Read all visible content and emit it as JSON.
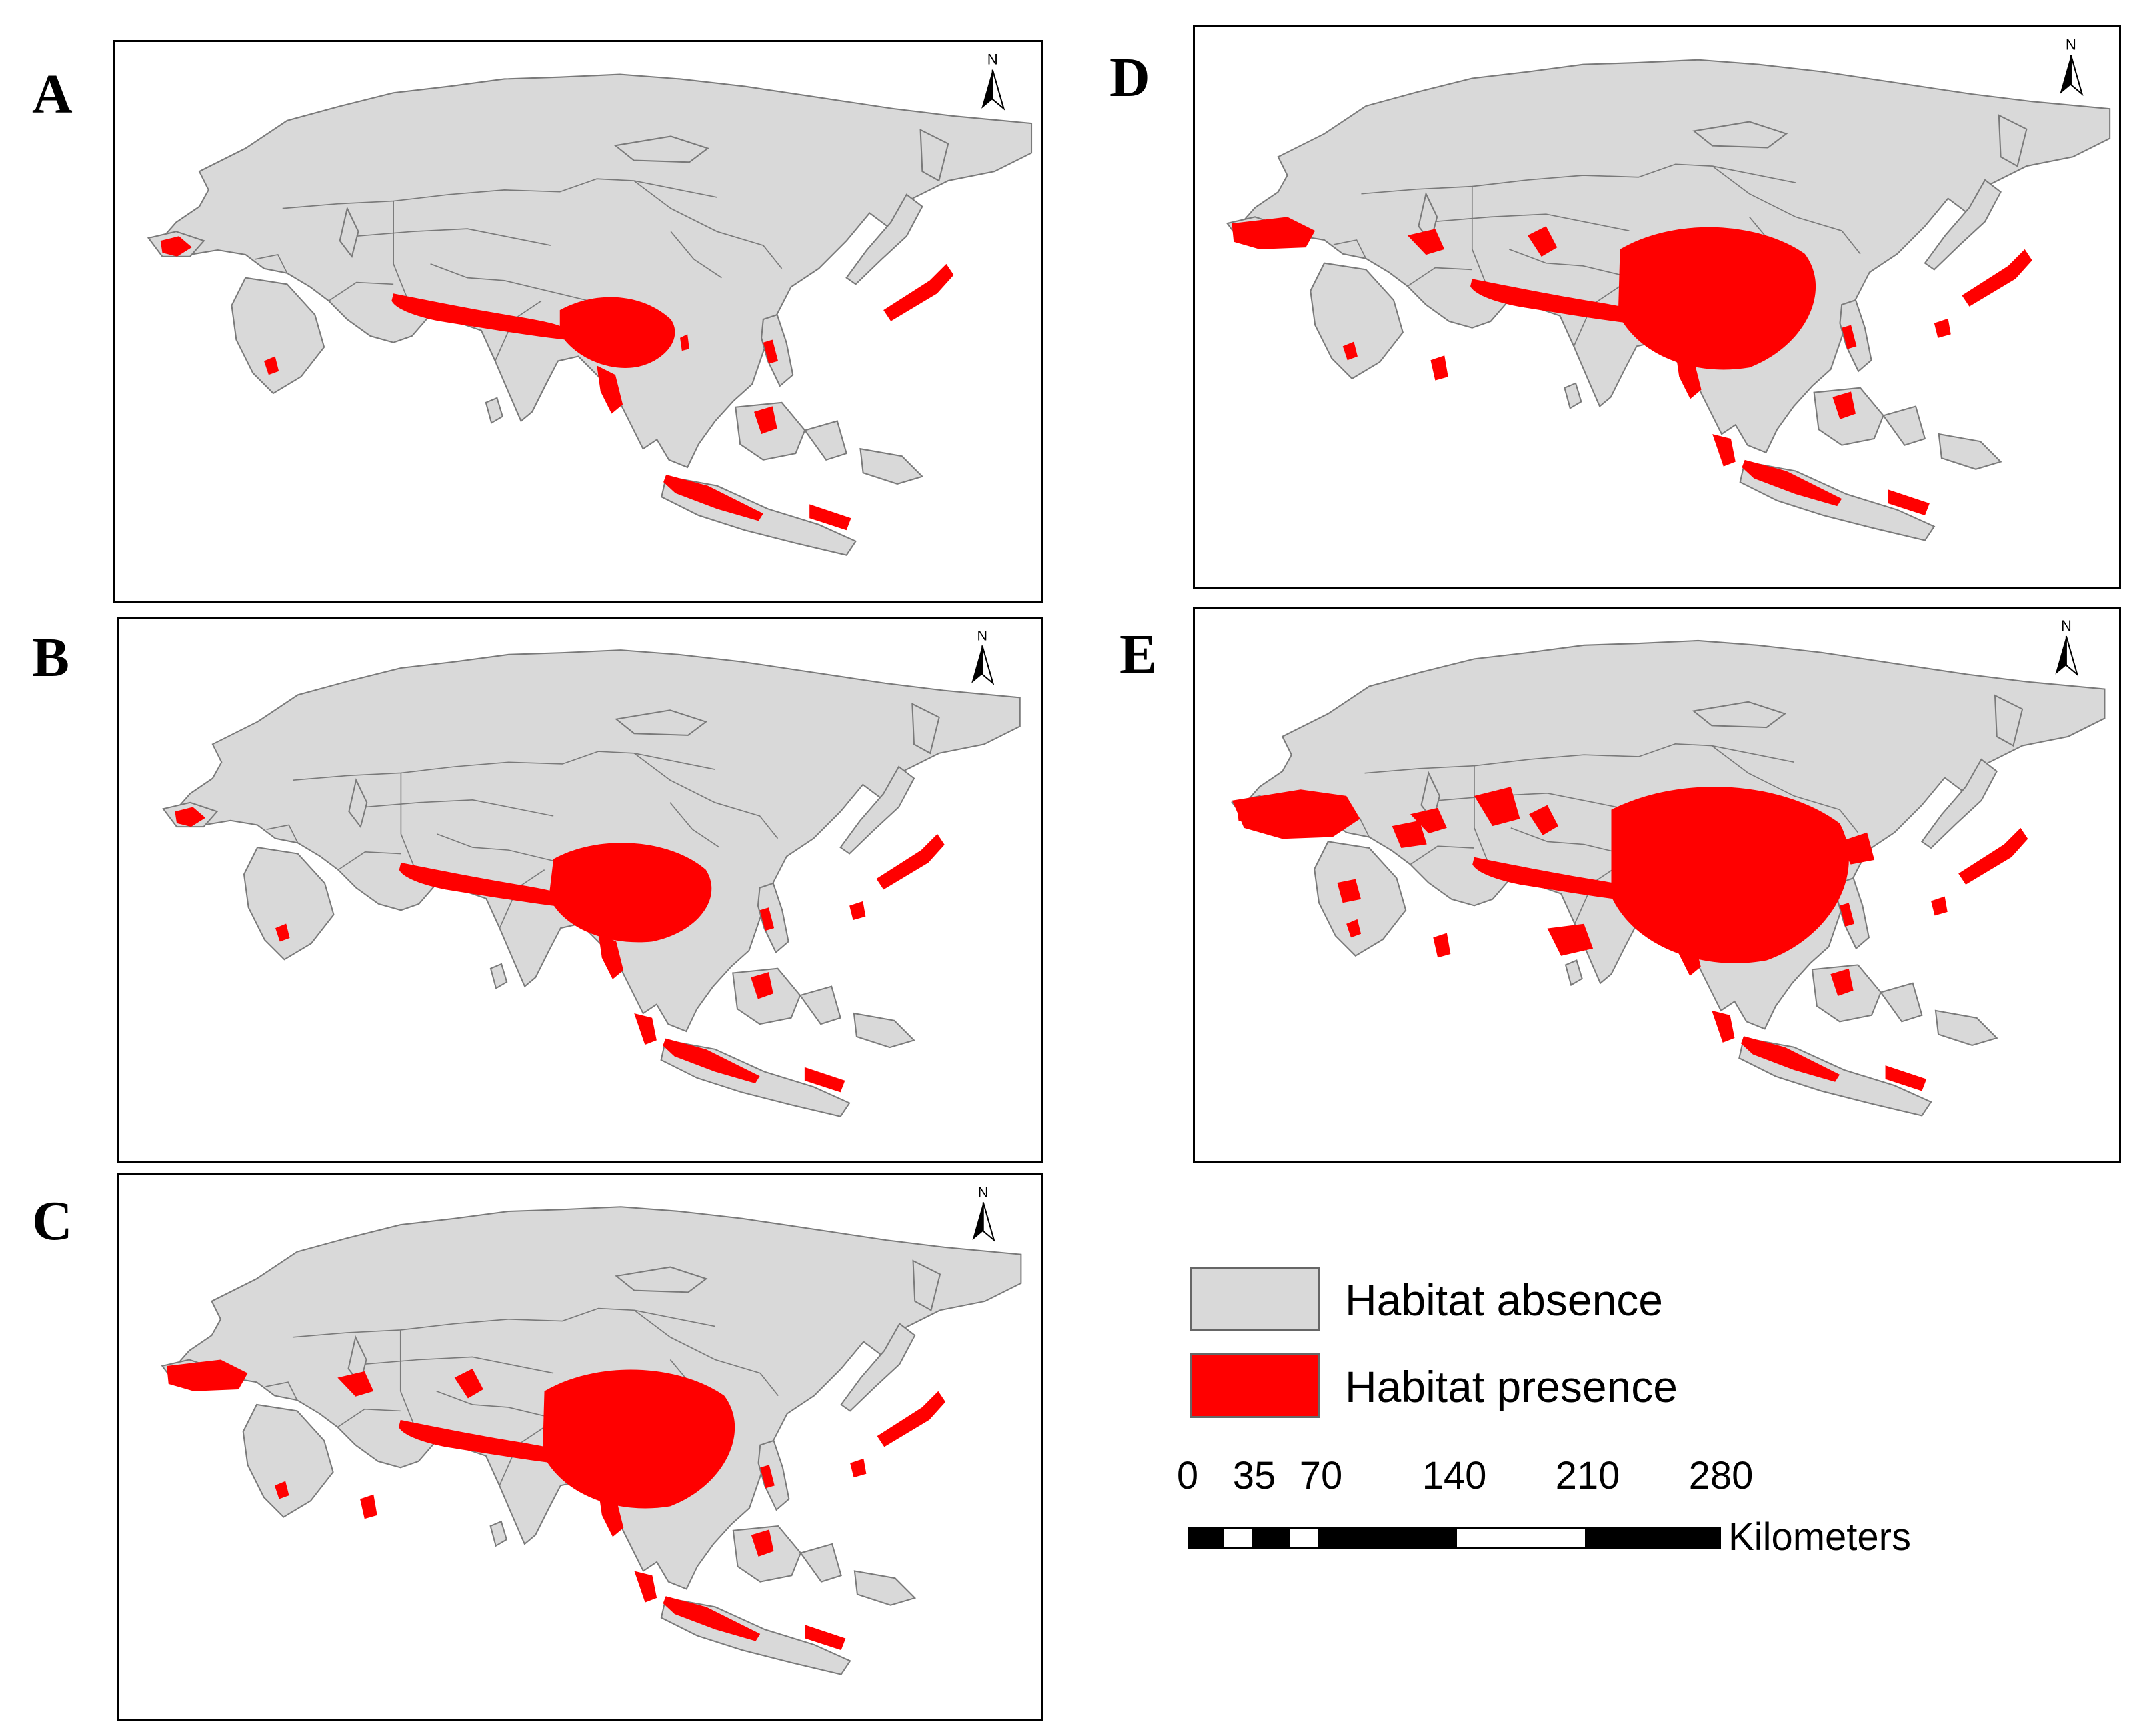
{
  "panels": [
    {
      "id": "A",
      "label": "A",
      "north_label": "N",
      "presence_level": 1
    },
    {
      "id": "B",
      "label": "B",
      "north_label": "N",
      "presence_level": 2
    },
    {
      "id": "C",
      "label": "C",
      "north_label": "N",
      "presence_level": 3
    },
    {
      "id": "D",
      "label": "D",
      "north_label": "N",
      "presence_level": 3
    },
    {
      "id": "E",
      "label": "E",
      "north_label": "N",
      "presence_level": 4
    }
  ],
  "legend": {
    "absence": {
      "label": "Habitat absence",
      "color": "#d9d9d9"
    },
    "presence": {
      "label": "Habitat presence",
      "color": "#ff0000"
    }
  },
  "scale_bar": {
    "ticks": [
      "0",
      "35",
      "70",
      "140",
      "210",
      "280"
    ],
    "tick_values": [
      0,
      35,
      70,
      140,
      210,
      280
    ],
    "unit": "Kilometers"
  },
  "colors": {
    "land": "#d9d9d9",
    "border": "#7a7a7a",
    "presence": "#ff0000",
    "frame": "#000000"
  }
}
